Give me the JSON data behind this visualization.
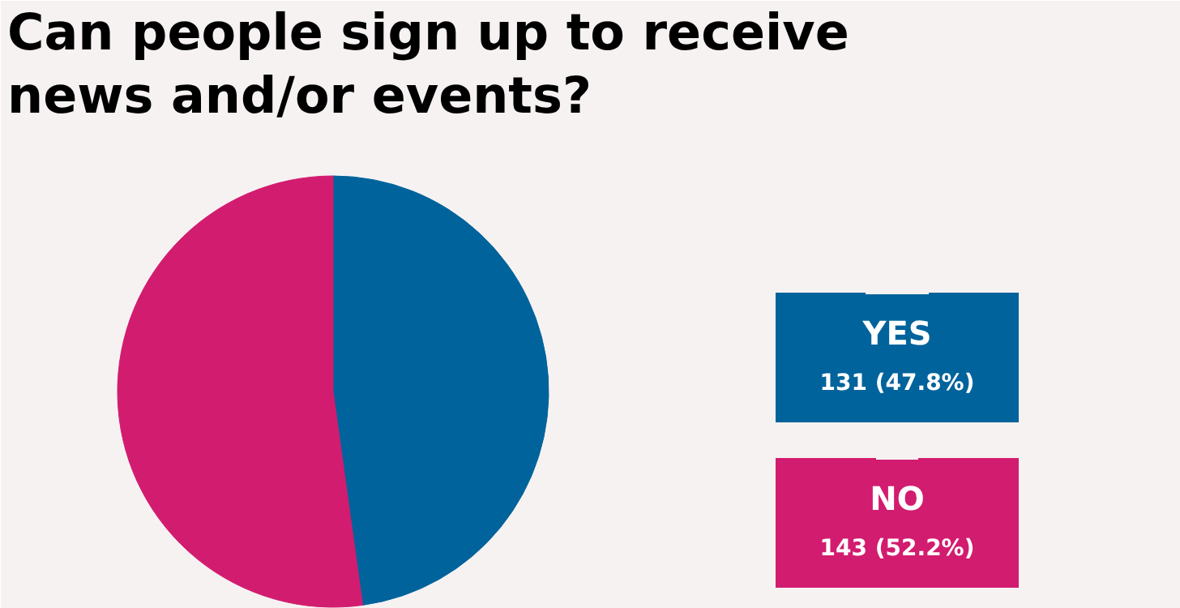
{
  "chart_data": {
    "type": "pie",
    "title": "Can people sign up to receive news and/or events?",
    "categories": [
      "YES",
      "NO"
    ],
    "values": [
      131,
      143
    ],
    "colors": [
      "#00639c",
      "#d21c6f"
    ],
    "value_labels": [
      "131 (47.8%)",
      "143 (52.2%)"
    ],
    "legend": "right"
  }
}
